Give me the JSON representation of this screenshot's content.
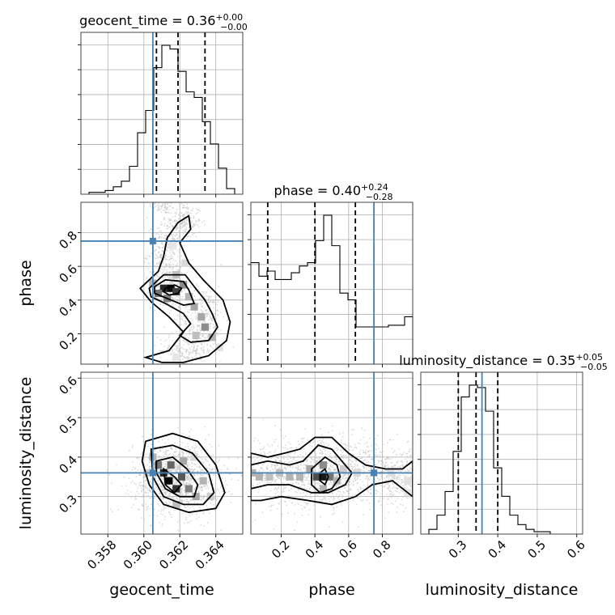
{
  "chart_data": {
    "type": "corner",
    "parameters": [
      "geocent_time",
      "phase",
      "luminosity_distance"
    ],
    "axis_labels": [
      "geocent_time",
      "phase",
      "luminosity_distance"
    ],
    "ranges": {
      "geocent_time": [
        0.3565,
        0.3655
      ],
      "phase": [
        0.02,
        0.98
      ],
      "luminosity_distance": [
        0.205,
        0.615
      ]
    },
    "ticks": {
      "geocent_time": {
        "values": [
          0.358,
          0.36,
          0.362,
          0.364
        ],
        "labels": [
          "0.358",
          "0.360",
          "0.362",
          "0.364"
        ]
      },
      "phase": {
        "values": [
          0.2,
          0.4,
          0.6,
          0.8
        ],
        "labels": [
          "0.2",
          "0.4",
          "0.6",
          "0.8"
        ]
      },
      "luminosity_distance": {
        "values": [
          0.3,
          0.4,
          0.5,
          0.6
        ],
        "labels": [
          "0.3",
          "0.4",
          "0.5",
          "0.6"
        ]
      }
    },
    "titles": [
      {
        "param": "geocent_time",
        "text": "geocent_time = 0.36",
        "sup": "+0.00",
        "sub": "−0.00"
      },
      {
        "param": "phase",
        "text": "phase = 0.40",
        "sup": "+0.24",
        "sub": "−0.28"
      },
      {
        "param": "luminosity_distance",
        "text": "luminosity_distance = 0.35",
        "sup": "+0.05",
        "sub": "−0.05"
      }
    ],
    "truths": {
      "geocent_time": 0.3605,
      "phase": 0.75,
      "luminosity_distance": 0.36
    },
    "quantiles": {
      "geocent_time": [
        0.3607,
        0.3619,
        0.3634
      ],
      "phase": [
        0.12,
        0.4,
        0.64
      ],
      "luminosity_distance": [
        0.3,
        0.345,
        0.4
      ]
    },
    "histograms": {
      "geocent_time": {
        "edges": [
          0.3565,
          0.35695,
          0.3574,
          0.35785,
          0.3583,
          0.35875,
          0.3592,
          0.35965,
          0.3601,
          0.36055,
          0.361,
          0.36145,
          0.3619,
          0.36235,
          0.3628,
          0.36325,
          0.3637,
          0.36415,
          0.3646,
          0.36505,
          0.3655
        ],
        "counts": [
          0,
          1,
          1,
          2,
          4,
          7,
          15,
          33,
          45,
          68,
          80,
          78,
          66,
          55,
          52,
          39,
          27,
          14,
          3,
          0
        ]
      },
      "phase": {
        "edges": [
          0.02,
          0.068,
          0.116,
          0.164,
          0.212,
          0.26,
          0.308,
          0.356,
          0.404,
          0.452,
          0.5,
          0.548,
          0.596,
          0.644,
          0.692,
          0.74,
          0.788,
          0.836,
          0.884,
          0.932,
          0.98
        ],
        "counts": [
          60,
          52,
          55,
          50,
          50,
          54,
          58,
          60,
          73,
          88,
          70,
          42,
          38,
          22,
          22,
          22,
          22,
          23,
          23,
          28
        ]
      },
      "luminosity_distance": {
        "edges": [
          0.205,
          0.2255,
          0.246,
          0.2665,
          0.287,
          0.3075,
          0.328,
          0.3485,
          0.369,
          0.3895,
          0.41,
          0.4305,
          0.451,
          0.4715,
          0.492,
          0.5125,
          0.533,
          0.5535,
          0.574,
          0.5945,
          0.615
        ],
        "counts": [
          0,
          2,
          8,
          18,
          35,
          58,
          63,
          62,
          52,
          28,
          16,
          8,
          4,
          2,
          1,
          1,
          0,
          0,
          0,
          0
        ]
      }
    },
    "contours": {
      "geocent_time_vs_phase": [
        [
          [
            0.3612,
            0.47
          ],
          [
            0.3617,
            0.49
          ],
          [
            0.3621,
            0.47
          ],
          [
            0.3619,
            0.44
          ],
          [
            0.3614,
            0.43
          ],
          [
            0.3611,
            0.45
          ]
        ],
        [
          [
            0.3606,
            0.48
          ],
          [
            0.3612,
            0.52
          ],
          [
            0.3622,
            0.51
          ],
          [
            0.3625,
            0.46
          ],
          [
            0.3628,
            0.38
          ],
          [
            0.3622,
            0.37
          ],
          [
            0.3613,
            0.41
          ],
          [
            0.3606,
            0.44
          ]
        ],
        [
          [
            0.3603,
            0.47
          ],
          [
            0.3611,
            0.55
          ],
          [
            0.3623,
            0.55
          ],
          [
            0.3628,
            0.48
          ],
          [
            0.3634,
            0.4
          ],
          [
            0.3638,
            0.32
          ],
          [
            0.3641,
            0.24
          ],
          [
            0.3636,
            0.16
          ],
          [
            0.3626,
            0.15
          ],
          [
            0.362,
            0.19
          ],
          [
            0.3626,
            0.26
          ],
          [
            0.3622,
            0.32
          ],
          [
            0.3612,
            0.38
          ],
          [
            0.3604,
            0.42
          ]
        ],
        [
          [
            0.3598,
            0.47
          ],
          [
            0.3608,
            0.57
          ],
          [
            0.3611,
            0.66
          ],
          [
            0.3613,
            0.77
          ],
          [
            0.3619,
            0.86
          ],
          [
            0.3625,
            0.9
          ],
          [
            0.3626,
            0.82
          ],
          [
            0.362,
            0.74
          ],
          [
            0.3625,
            0.62
          ],
          [
            0.3633,
            0.52
          ],
          [
            0.3644,
            0.4
          ],
          [
            0.3648,
            0.27
          ],
          [
            0.3646,
            0.16
          ],
          [
            0.3636,
            0.07
          ],
          [
            0.3622,
            0.03
          ],
          [
            0.361,
            0.03
          ],
          [
            0.3601,
            0.06
          ],
          [
            0.3614,
            0.1
          ],
          [
            0.3622,
            0.21
          ],
          [
            0.3614,
            0.3
          ],
          [
            0.3604,
            0.39
          ]
        ]
      ],
      "geocent_time_vs_luminosity_distance": [
        [
          [
            0.3611,
            0.37
          ],
          [
            0.3617,
            0.35
          ],
          [
            0.3621,
            0.33
          ],
          [
            0.3617,
            0.31
          ],
          [
            0.3612,
            0.33
          ]
        ],
        [
          [
            0.3607,
            0.39
          ],
          [
            0.3616,
            0.4
          ],
          [
            0.3624,
            0.37
          ],
          [
            0.363,
            0.33
          ],
          [
            0.3628,
            0.3
          ],
          [
            0.362,
            0.3
          ],
          [
            0.3612,
            0.32
          ],
          [
            0.3607,
            0.36
          ]
        ],
        [
          [
            0.3604,
            0.42
          ],
          [
            0.3616,
            0.43
          ],
          [
            0.3627,
            0.41
          ],
          [
            0.3636,
            0.36
          ],
          [
            0.3639,
            0.31
          ],
          [
            0.3633,
            0.28
          ],
          [
            0.3622,
            0.28
          ],
          [
            0.3611,
            0.3
          ],
          [
            0.3605,
            0.35
          ]
        ],
        [
          [
            0.3601,
            0.44
          ],
          [
            0.3616,
            0.46
          ],
          [
            0.363,
            0.44
          ],
          [
            0.364,
            0.38
          ],
          [
            0.3645,
            0.31
          ],
          [
            0.364,
            0.27
          ],
          [
            0.3625,
            0.26
          ],
          [
            0.3611,
            0.28
          ],
          [
            0.3603,
            0.33
          ],
          [
            0.3599,
            0.39
          ]
        ]
      ],
      "phase_vs_luminosity_distance": [
        [
          [
            0.43,
            0.36
          ],
          [
            0.46,
            0.37
          ],
          [
            0.48,
            0.35
          ],
          [
            0.46,
            0.33
          ],
          [
            0.43,
            0.34
          ]
        ],
        [
          [
            0.38,
            0.37
          ],
          [
            0.46,
            0.4
          ],
          [
            0.53,
            0.38
          ],
          [
            0.55,
            0.35
          ],
          [
            0.5,
            0.32
          ],
          [
            0.43,
            0.31
          ],
          [
            0.38,
            0.33
          ]
        ],
        [
          [
            0.02,
            0.38
          ],
          [
            0.12,
            0.39
          ],
          [
            0.25,
            0.38
          ],
          [
            0.33,
            0.39
          ],
          [
            0.42,
            0.43
          ],
          [
            0.5,
            0.42
          ],
          [
            0.56,
            0.39
          ],
          [
            0.62,
            0.36
          ],
          [
            0.58,
            0.33
          ],
          [
            0.48,
            0.31
          ],
          [
            0.38,
            0.31
          ],
          [
            0.25,
            0.33
          ],
          [
            0.12,
            0.33
          ],
          [
            0.02,
            0.32
          ]
        ],
        [
          [
            0.02,
            0.41
          ],
          [
            0.12,
            0.4
          ],
          [
            0.22,
            0.41
          ],
          [
            0.31,
            0.42
          ],
          [
            0.4,
            0.45
          ],
          [
            0.5,
            0.45
          ],
          [
            0.6,
            0.41
          ],
          [
            0.7,
            0.38
          ],
          [
            0.82,
            0.37
          ],
          [
            0.92,
            0.37
          ],
          [
            0.98,
            0.39
          ],
          [
            0.98,
            0.3
          ],
          [
            0.86,
            0.34
          ],
          [
            0.74,
            0.33
          ],
          [
            0.64,
            0.3
          ],
          [
            0.5,
            0.28
          ],
          [
            0.36,
            0.29
          ],
          [
            0.2,
            0.3
          ],
          [
            0.08,
            0.29
          ],
          [
            0.02,
            0.29
          ]
        ]
      ]
    },
    "density_cells": {
      "geocent_time_vs_phase": [
        [
          0.3615,
          0.47,
          0.95
        ],
        [
          0.3611,
          0.47,
          0.85
        ],
        [
          0.3618,
          0.45,
          0.75
        ],
        [
          0.3608,
          0.44,
          0.55
        ],
        [
          0.3622,
          0.49,
          0.45
        ],
        [
          0.3613,
          0.41,
          0.5
        ],
        [
          0.3625,
          0.42,
          0.3
        ],
        [
          0.3628,
          0.36,
          0.35
        ],
        [
          0.3632,
          0.3,
          0.35
        ],
        [
          0.3634,
          0.24,
          0.45
        ],
        [
          0.3638,
          0.18,
          0.3
        ],
        [
          0.3629,
          0.19,
          0.25
        ],
        [
          0.3605,
          0.5,
          0.3
        ],
        [
          0.3618,
          0.55,
          0.25
        ],
        [
          0.3623,
          0.62,
          0.15
        ],
        [
          0.3616,
          0.72,
          0.1
        ],
        [
          0.3642,
          0.12,
          0.12
        ],
        [
          0.3618,
          0.06,
          0.1
        ]
      ],
      "geocent_time_vs_luminosity_distance": [
        [
          0.3614,
          0.34,
          0.98
        ],
        [
          0.3611,
          0.36,
          0.85
        ],
        [
          0.3618,
          0.32,
          0.8
        ],
        [
          0.3621,
          0.35,
          0.65
        ],
        [
          0.3608,
          0.38,
          0.55
        ],
        [
          0.3615,
          0.38,
          0.6
        ],
        [
          0.3625,
          0.32,
          0.5
        ],
        [
          0.3629,
          0.3,
          0.35
        ],
        [
          0.3605,
          0.4,
          0.3
        ],
        [
          0.3622,
          0.39,
          0.35
        ],
        [
          0.3633,
          0.34,
          0.3
        ],
        [
          0.3637,
          0.3,
          0.2
        ],
        [
          0.3602,
          0.36,
          0.2
        ],
        [
          0.3618,
          0.28,
          0.25
        ],
        [
          0.3628,
          0.4,
          0.15
        ]
      ],
      "phase_vs_luminosity_distance": [
        [
          0.45,
          0.35,
          0.9
        ],
        [
          0.41,
          0.35,
          0.7
        ],
        [
          0.49,
          0.35,
          0.55
        ],
        [
          0.45,
          0.38,
          0.45
        ],
        [
          0.37,
          0.37,
          0.35
        ],
        [
          0.31,
          0.35,
          0.3
        ],
        [
          0.25,
          0.35,
          0.3
        ],
        [
          0.19,
          0.36,
          0.25
        ],
        [
          0.13,
          0.35,
          0.25
        ],
        [
          0.07,
          0.35,
          0.3
        ],
        [
          0.03,
          0.36,
          0.3
        ],
        [
          0.53,
          0.34,
          0.3
        ],
        [
          0.57,
          0.37,
          0.2
        ],
        [
          0.65,
          0.36,
          0.15
        ],
        [
          0.75,
          0.36,
          0.12
        ],
        [
          0.85,
          0.36,
          0.12
        ],
        [
          0.95,
          0.34,
          0.12
        ],
        [
          0.95,
          0.31,
          0.1
        ],
        [
          0.45,
          0.32,
          0.3
        ]
      ]
    },
    "sample_clouds": {
      "geocent_time_vs_phase": [
        [
          0.3611,
          0.97,
          0.0004,
          0.03,
          90
        ],
        [
          0.3622,
          0.86,
          0.0005,
          0.06,
          220
        ],
        [
          0.3612,
          0.68,
          0.0005,
          0.08,
          260
        ],
        [
          0.3614,
          0.47,
          0.0005,
          0.06,
          320
        ],
        [
          0.3633,
          0.3,
          0.0006,
          0.09,
          300
        ],
        [
          0.3624,
          0.1,
          0.0008,
          0.05,
          220
        ]
      ],
      "geocent_time_vs_luminosity_distance": [
        [
          0.3618,
          0.345,
          0.0012,
          0.045,
          1300
        ]
      ],
      "phase_vs_luminosity_distance": [
        [
          0.46,
          0.36,
          0.12,
          0.04,
          500
        ],
        [
          0.2,
          0.36,
          0.12,
          0.045,
          450
        ],
        [
          0.72,
          0.36,
          0.16,
          0.04,
          500
        ],
        [
          0.9,
          0.35,
          0.07,
          0.035,
          200
        ]
      ]
    }
  }
}
